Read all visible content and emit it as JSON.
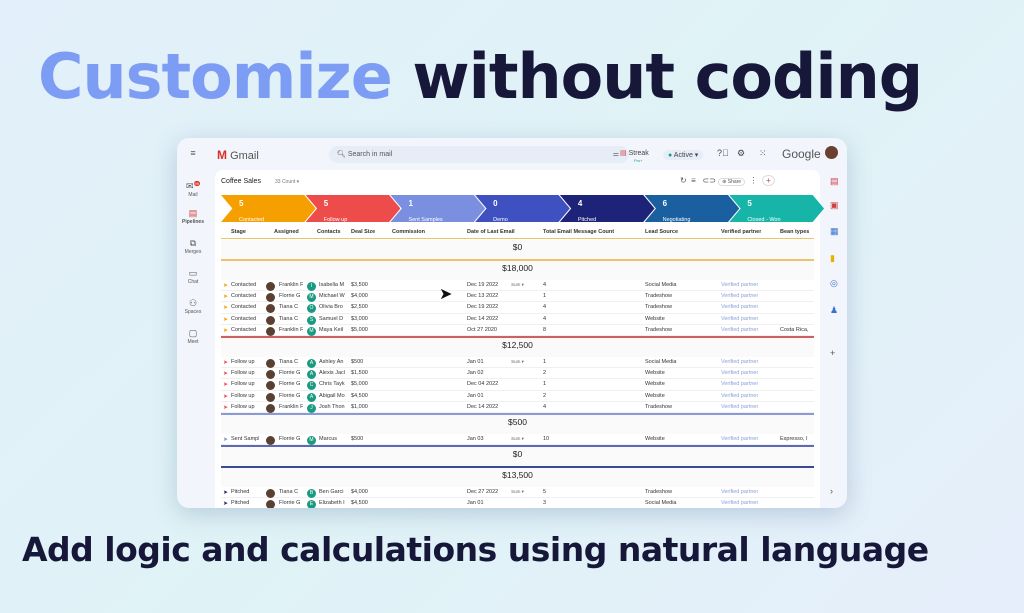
{
  "headline": {
    "part1": "Customize",
    "part2": "without coding"
  },
  "subtitle": "Add logic and calculations using natural language",
  "gmail": {
    "logo": "Gmail",
    "search_placeholder": "Search in mail",
    "streak": "Streak",
    "streak_sub": "Pro+",
    "status": "Active",
    "brand": "Google"
  },
  "left_sidebar": [
    {
      "label": "Mail",
      "icon": "mail-icon",
      "badge": "99"
    },
    {
      "label": "Pipelines",
      "icon": "pipelines-icon"
    },
    {
      "label": "Merges",
      "icon": "merges-icon"
    },
    {
      "label": "Chat",
      "icon": "chat-icon"
    },
    {
      "label": "Spaces",
      "icon": "spaces-icon"
    },
    {
      "label": "Meet",
      "icon": "meet-icon"
    }
  ],
  "pipeline": {
    "name": "Coffee Sales",
    "count": "33 Count",
    "share": "Share"
  },
  "stages": [
    {
      "count": "5",
      "label": "Contacted",
      "color": "#f5a000"
    },
    {
      "count": "5",
      "label": "Follow up",
      "color": "#ee4b4b"
    },
    {
      "count": "1",
      "label": "Sent Samples",
      "color": "#7b8fe0"
    },
    {
      "count": "0",
      "label": "Demo",
      "color": "#3f51c0"
    },
    {
      "count": "4",
      "label": "Pitched",
      "color": "#1e237a"
    },
    {
      "count": "6",
      "label": "Negotiating",
      "color": "#1a5fa0"
    },
    {
      "count": "5",
      "label": "Closed - Won",
      "color": "#17b5a8"
    }
  ],
  "columns": [
    "Stage",
    "Assigned",
    "Contacts",
    "Deal Size",
    "Commission",
    "Date of Last Email",
    "Total Email Message Count",
    "Lead Source",
    "Verified partner",
    "Bean types"
  ],
  "groups": [
    {
      "sum": "$0",
      "sum_label": "Sum",
      "color": "#e8c56a",
      "rows": []
    },
    {
      "sum": "$18,000",
      "sum_label": "Sum",
      "color": "#d06060",
      "rows": [
        [
          "Contacted",
          "Franklin F",
          "I",
          "Isabella M",
          "$3,500",
          "Dec 19 2022",
          "4",
          "Social Media",
          "Verified partner",
          ""
        ],
        [
          "Contacted",
          "Florrie G",
          "M",
          "Michael W",
          "$4,000",
          "Dec 13 2022",
          "1",
          "Tradeshow",
          "Verified partner",
          ""
        ],
        [
          "Contacted",
          "Tiana C",
          "O",
          "Olivia Bro",
          "$2,500",
          "Dec 19 2022",
          "4",
          "Tradeshow",
          "Verified partner",
          ""
        ],
        [
          "Contacted",
          "Tiana C",
          "S",
          "Samuel D",
          "$3,000",
          "Dec 14 2022",
          "4",
          "Website",
          "Verified partner",
          ""
        ],
        [
          "Contacted",
          "Franklin F",
          "M",
          "Maya Keil",
          "$5,000",
          "Oct 27 2020",
          "8",
          "Tradeshow",
          "Verified partner",
          "Costa Rica,"
        ]
      ]
    },
    {
      "sum": "$12,500",
      "sum_label": "Sum",
      "color": "#8a9ad8",
      "rows": [
        [
          "Follow up",
          "Tiana C",
          "A",
          "Ashley An",
          "$500",
          "Jan 01",
          "1",
          "Social Media",
          "Verified partner",
          ""
        ],
        [
          "Follow up",
          "Florrie G",
          "A",
          "Alexis Jacl",
          "$1,500",
          "Jan 02",
          "2",
          "Website",
          "Verified partner",
          ""
        ],
        [
          "Follow up",
          "Florrie G",
          "C",
          "Chris Tayk",
          "$5,000",
          "Dec 04 2022",
          "1",
          "Website",
          "Verified partner",
          ""
        ],
        [
          "Follow up",
          "Florrie G",
          "A",
          "Abigail Mo",
          "$4,500",
          "Jan 01",
          "2",
          "Website",
          "Verified partner",
          ""
        ],
        [
          "Follow up",
          "Franklin F",
          "J",
          "Josh Thon",
          "$1,000",
          "Dec 14 2022",
          "4",
          "Tradeshow",
          "Verified partner",
          ""
        ]
      ]
    },
    {
      "sum": "$500",
      "sum_label": "Sum",
      "color": "#5a6ab8",
      "rows": [
        [
          "Sent Sampl",
          "Florrie G",
          "M",
          "Marcus",
          "$500",
          "Jan 03",
          "10",
          "Website",
          "Verified partner",
          "Espresso, I"
        ]
      ]
    },
    {
      "sum": "$0",
      "sum_label": "Sum",
      "color": "#3a4a9a",
      "rows": []
    },
    {
      "sum": "$13,500",
      "sum_label": "Sum",
      "color": "#1e237a",
      "rows": [
        [
          "Pitched",
          "Tiana C",
          "B",
          "Ben Garci",
          "$4,000",
          "Dec 27 2022",
          "5",
          "Tradeshow",
          "Verified partner",
          ""
        ],
        [
          "Pitched",
          "Florrie G",
          "E",
          "Elizabeth I",
          "$4,500",
          "Jan 01",
          "3",
          "Social Media",
          "Verified partner",
          ""
        ]
      ]
    }
  ]
}
